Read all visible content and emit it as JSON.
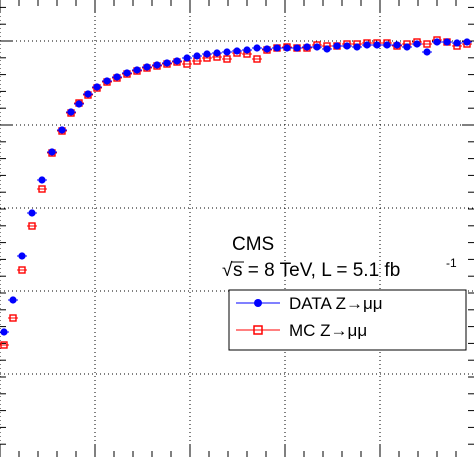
{
  "annotation": {
    "experiment": "CMS",
    "sqrt_s_symbol": "√",
    "energy_label": "s = 8 TeV, L = 5.1 fb",
    "lumi_exponent": "-1"
  },
  "chart_data": {
    "type": "scatter",
    "title": "",
    "xlabel": "",
    "ylabel": "",
    "xlim": [
      0,
      474
    ],
    "ylim": [
      0,
      457
    ],
    "grid": true,
    "legend_position": "right",
    "x_major_ticks": [
      0,
      95,
      190,
      285,
      380
    ],
    "y_major_ticks": [
      41,
      125,
      208,
      291,
      374
    ],
    "series": [
      {
        "name": "DATA Z→μμ",
        "marker": "filled-circle",
        "color": "#0000ff",
        "points": [
          [
            4,
            332
          ],
          [
            13,
            300
          ],
          [
            22,
            256
          ],
          [
            32,
            213
          ],
          [
            42,
            180
          ],
          [
            52,
            152
          ],
          [
            62,
            130
          ],
          [
            71,
            112
          ],
          [
            79,
            104
          ],
          [
            88,
            94
          ],
          [
            97,
            87
          ],
          [
            107,
            81
          ],
          [
            117,
            77
          ],
          [
            127,
            73
          ],
          [
            137,
            70
          ],
          [
            147,
            67
          ],
          [
            157,
            65
          ],
          [
            167,
            63
          ],
          [
            177,
            61
          ],
          [
            187,
            58
          ],
          [
            197,
            56
          ],
          [
            207,
            54
          ],
          [
            217,
            53
          ],
          [
            227,
            52
          ],
          [
            237,
            51
          ],
          [
            247,
            50
          ],
          [
            257,
            48
          ],
          [
            267,
            49
          ],
          [
            277,
            48
          ],
          [
            287,
            48
          ],
          [
            297,
            48
          ],
          [
            307,
            47
          ],
          [
            317,
            47
          ],
          [
            327,
            49
          ],
          [
            337,
            46
          ],
          [
            347,
            46
          ],
          [
            357,
            47
          ],
          [
            367,
            45
          ],
          [
            377,
            45
          ],
          [
            387,
            45
          ],
          [
            397,
            45
          ],
          [
            407,
            47
          ],
          [
            417,
            44
          ],
          [
            427,
            52
          ],
          [
            437,
            42
          ],
          [
            447,
            42
          ],
          [
            457,
            43
          ],
          [
            467,
            42
          ]
        ]
      },
      {
        "name": "MC Z→μμ",
        "marker": "open-square",
        "color": "#ff0000",
        "points": [
          [
            4,
            345
          ],
          [
            13,
            318
          ],
          [
            22,
            270
          ],
          [
            32,
            226
          ],
          [
            42,
            189
          ],
          [
            52,
            153
          ],
          [
            62,
            131
          ],
          [
            71,
            113
          ],
          [
            79,
            103
          ],
          [
            88,
            95
          ],
          [
            97,
            88
          ],
          [
            107,
            82
          ],
          [
            117,
            78
          ],
          [
            127,
            74
          ],
          [
            137,
            71
          ],
          [
            147,
            68
          ],
          [
            157,
            66
          ],
          [
            167,
            64
          ],
          [
            177,
            62
          ],
          [
            187,
            64
          ],
          [
            197,
            61
          ],
          [
            207,
            58
          ],
          [
            217,
            57
          ],
          [
            227,
            59
          ],
          [
            237,
            53
          ],
          [
            247,
            54
          ],
          [
            257,
            59
          ],
          [
            267,
            50
          ],
          [
            277,
            48
          ],
          [
            287,
            47
          ],
          [
            297,
            48
          ],
          [
            307,
            48
          ],
          [
            317,
            45
          ],
          [
            327,
            46
          ],
          [
            337,
            46
          ],
          [
            347,
            44
          ],
          [
            357,
            44
          ],
          [
            367,
            43
          ],
          [
            377,
            43
          ],
          [
            387,
            43
          ],
          [
            397,
            46
          ],
          [
            407,
            44
          ],
          [
            417,
            42
          ],
          [
            427,
            44
          ],
          [
            437,
            40
          ],
          [
            447,
            42
          ],
          [
            457,
            46
          ],
          [
            467,
            44
          ]
        ]
      }
    ]
  }
}
